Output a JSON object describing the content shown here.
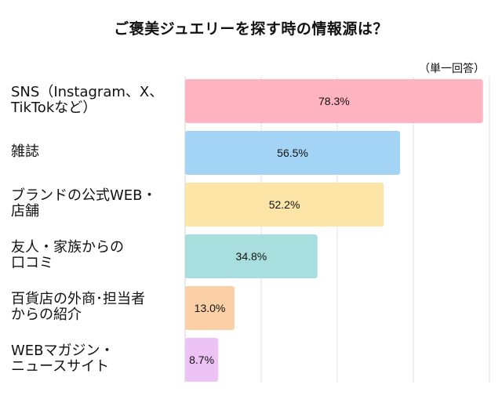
{
  "chart_data": {
    "type": "bar",
    "orientation": "horizontal",
    "title": "ご褒美ジュエリーを探す時の情報源は？",
    "note": "（単一回答）",
    "categories": [
      [
        "SNS（Instagram、X、",
        "TikTokなど）"
      ],
      [
        "雑誌"
      ],
      [
        "ブランドの公式WEB・",
        "店舗"
      ],
      [
        "友人・家族からの",
        "口コミ"
      ],
      [
        "百貨店の外商･担当者",
        "からの紹介"
      ],
      [
        "WEBマガジン・",
        "ニュースサイト"
      ]
    ],
    "values": [
      78.3,
      56.5,
      52.2,
      34.8,
      13.0,
      8.7
    ],
    "data_labels": [
      "78.3%",
      "56.5%",
      "52.2%",
      "34.8%",
      "13.0%",
      "8.7%"
    ],
    "colors": [
      "#ffb3c1",
      "#a3d3f5",
      "#fde5a8",
      "#a8dedd",
      "#fbd0a6",
      "#edc3f5"
    ],
    "xlim": [
      0,
      80
    ],
    "gridlines": [
      0,
      20,
      40,
      60,
      80
    ],
    "grid": true,
    "xlabel": "",
    "ylabel": ""
  }
}
